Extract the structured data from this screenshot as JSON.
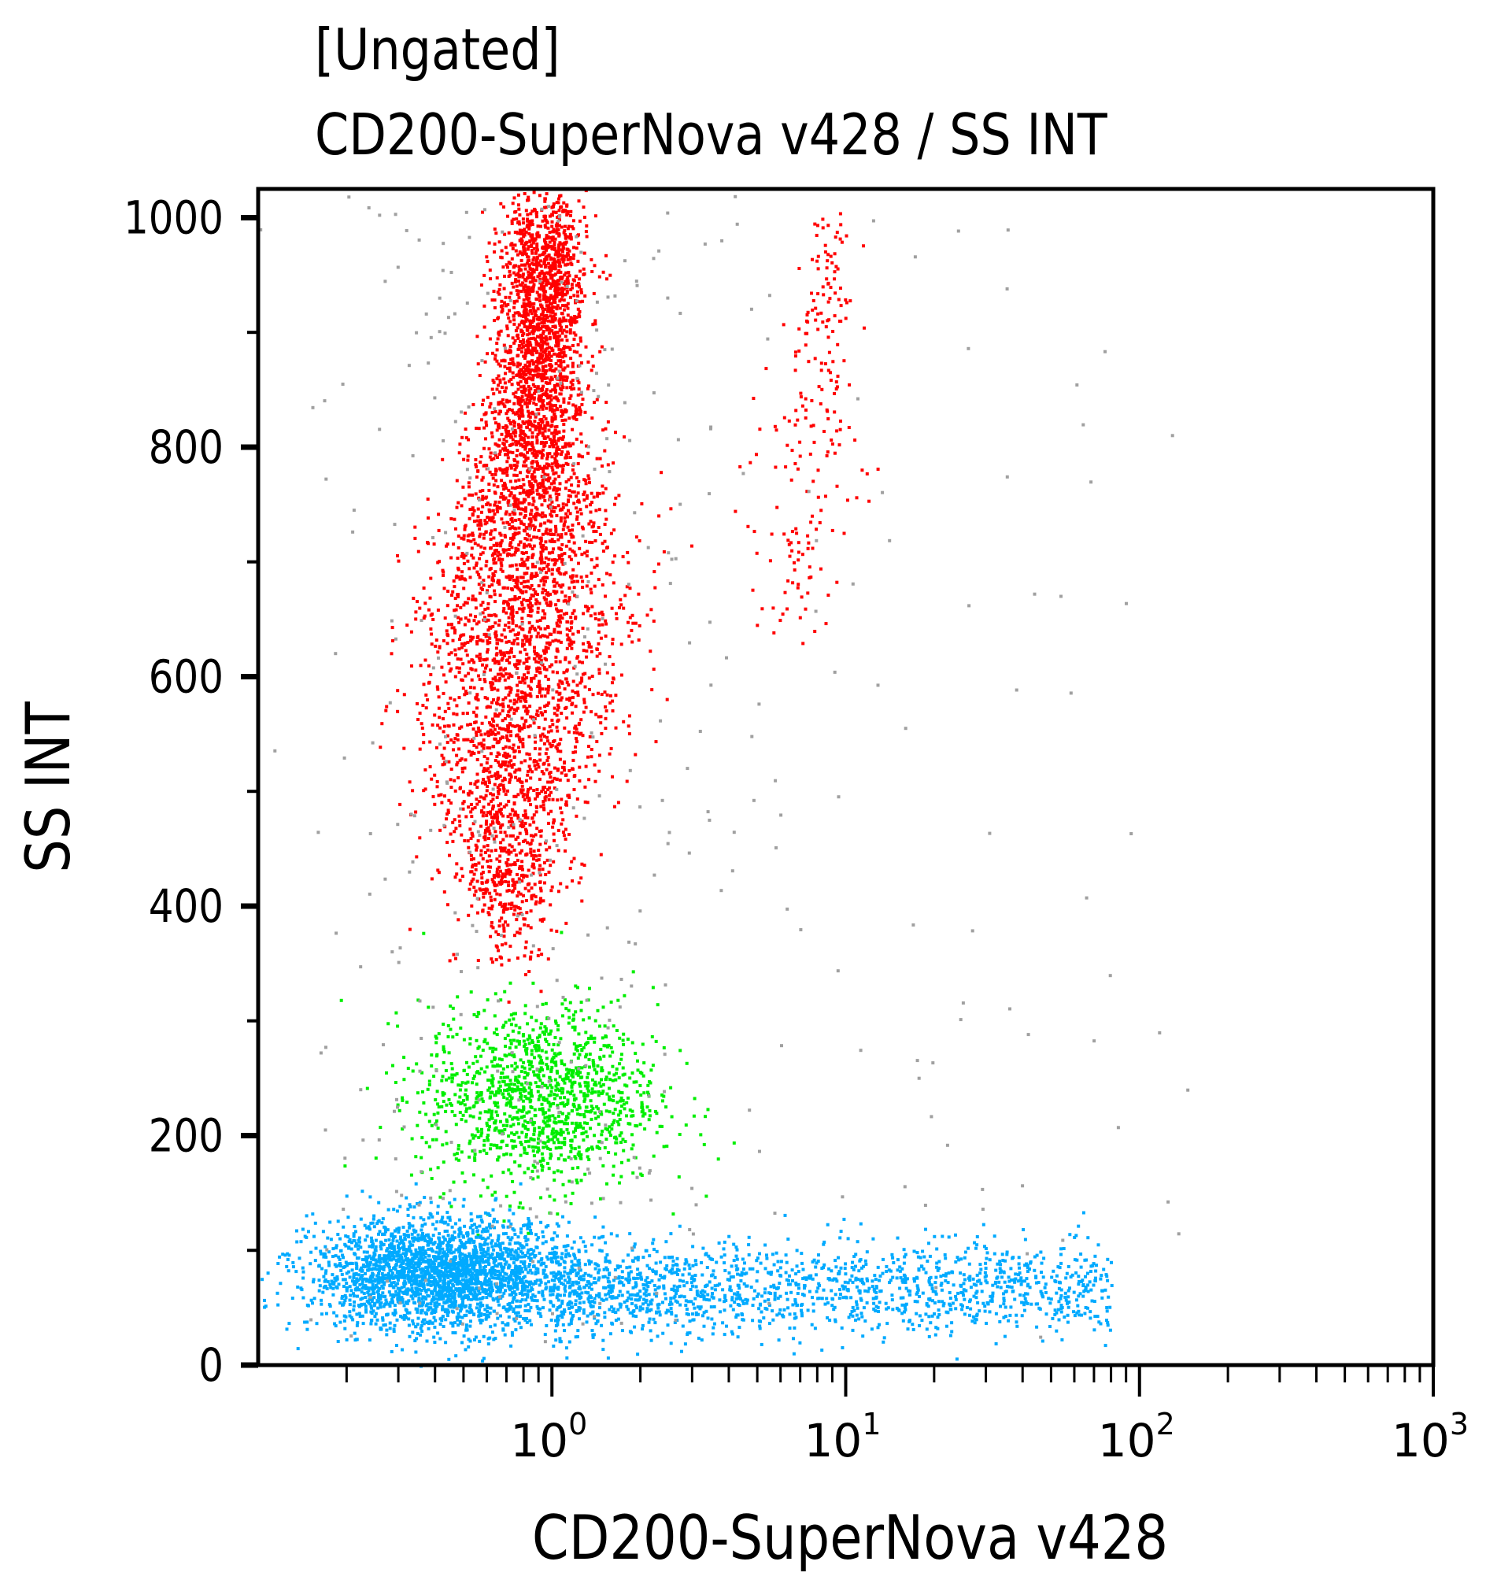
{
  "chart_data": {
    "type": "scatter",
    "title": "[Ungated]",
    "subtitle": "CD200-SuperNova v428 / SS INT",
    "xlabel": "CD200-SuperNova v428",
    "ylabel": "SS INT",
    "xscale": "log",
    "xlim": [
      0.1,
      1000
    ],
    "ylim": [
      0,
      1025
    ],
    "xticks": [
      {
        "value": 1,
        "base": "10",
        "exp": "0"
      },
      {
        "value": 10,
        "base": "10",
        "exp": "1"
      },
      {
        "value": 100,
        "base": "10",
        "exp": "2"
      },
      {
        "value": 1000,
        "base": "10",
        "exp": "3"
      }
    ],
    "yticks": [
      0,
      200,
      400,
      600,
      800,
      1000
    ],
    "grid": false,
    "colors": {
      "red": "#ff0000",
      "green": "#00ee00",
      "blue": "#00aaff",
      "gray": "#a0a0a0"
    },
    "populations": [
      {
        "color": "#ff0000",
        "x_center": 0.8,
        "x_spread_log10": 0.12,
        "y_range": [
          380,
          1000
        ],
        "count": 4800
      },
      {
        "color": "#ff0000",
        "x_center": 7.5,
        "x_spread_log10": 0.07,
        "y_range": [
          640,
          990
        ],
        "count": 220
      },
      {
        "color": "#00ee00",
        "x_center": 0.9,
        "x_spread_log10": 0.2,
        "y_center": 235,
        "y_spread": 40,
        "count": 1300
      },
      {
        "color": "#00aaff",
        "x_center": 0.42,
        "x_spread_log10": 0.22,
        "y_center": 80,
        "y_spread": 24,
        "count": 2600
      },
      {
        "color": "#00aaff",
        "x_range": [
          1,
          80
        ],
        "y_center": 68,
        "y_spread": 20,
        "count": 1500
      },
      {
        "color": "#a0a0a0",
        "x_range": [
          0.15,
          150
        ],
        "y_range": [
          20,
          1020
        ],
        "count": 450
      }
    ]
  }
}
